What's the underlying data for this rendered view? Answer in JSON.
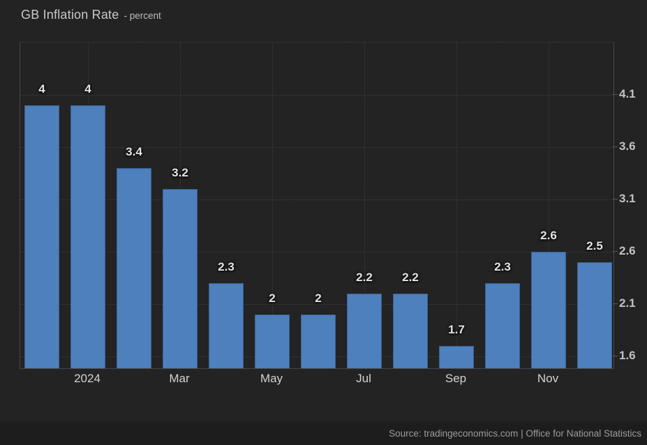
{
  "chart_data": {
    "type": "bar",
    "title": "GB Inflation Rate",
    "subtitle": "- percent",
    "unit": "percent",
    "values": [
      4,
      4,
      3.4,
      3.2,
      2.3,
      2,
      2,
      2.2,
      2.2,
      1.7,
      2.3,
      2.6,
      2.5
    ],
    "bar_value_labels": [
      "4",
      "4",
      "3.4",
      "3.2",
      "2.3",
      "2",
      "2",
      "2.2",
      "2.2",
      "1.7",
      "2.3",
      "2.6",
      "2.5"
    ],
    "x_tick_labels": [
      {
        "bar_index": 1,
        "label": "2024"
      },
      {
        "bar_index": 3,
        "label": "Mar"
      },
      {
        "bar_index": 5,
        "label": "May"
      },
      {
        "bar_index": 7,
        "label": "Jul"
      },
      {
        "bar_index": 9,
        "label": "Sep"
      },
      {
        "bar_index": 11,
        "label": "Nov"
      }
    ],
    "y_tick_values": [
      4.1,
      3.6,
      3.1,
      2.6,
      2.1,
      1.6
    ],
    "y_tick_labels": [
      "4.1",
      "3.6",
      "3.1",
      "2.6",
      "2.1",
      "1.6"
    ],
    "ylim": [
      1.487,
      4.6
    ],
    "grid": "dotted",
    "legend_position": "none",
    "y_axis_side": "right",
    "colors": {
      "bar": "#4d80bc",
      "bar_border": "#3a6294",
      "background": "#232323",
      "grid": "#3e3e3e",
      "axis": "#474747",
      "value_label_text": "#e4e4e4",
      "tick_label_text": "#c2c2c2",
      "x_label_text": "#d2d2d2",
      "title_text": "#c9c9c9",
      "source_text": "#9c9c9c",
      "source_bar_bg": "#1d1d1d"
    }
  },
  "footer": {
    "source": "Source: tradingeconomics.com | Office for National Statistics"
  }
}
